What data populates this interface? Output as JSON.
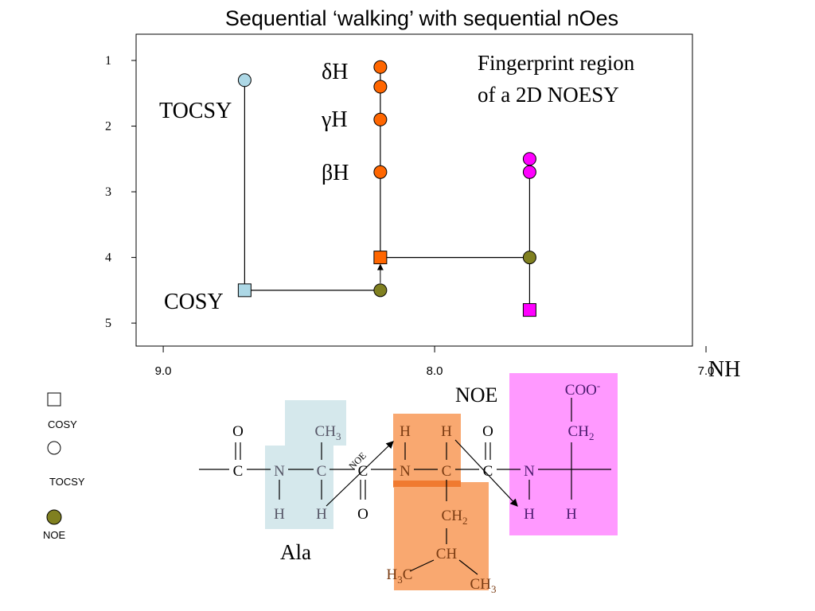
{
  "title": "Sequential ‘walking’ with sequential nOes",
  "annotations": {
    "fingerprint_line1": "Fingerprint region",
    "fingerprint_line2": "of a 2D NOESY",
    "tocsy": "TOCSY",
    "cosy": "COSY",
    "delta_h": "δH",
    "gamma_h": "γH",
    "beta_h": "βH",
    "nh_axis": "NH",
    "noe": "NOE",
    "noe_small": "NOE",
    "ala": "Ala"
  },
  "chart_data": {
    "type": "scatter",
    "xlabel": "NH",
    "x_ticks": [
      "9.0",
      "8.0",
      "7.0"
    ],
    "y_ticks": [
      "1",
      "2",
      "3",
      "4",
      "5"
    ],
    "xlim": [
      9.1,
      7.05
    ],
    "ylim": [
      0.6,
      5.35
    ],
    "points": [
      {
        "x": 8.7,
        "y": 1.3,
        "type": "TOCSY",
        "color": "#add8e6"
      },
      {
        "x": 8.7,
        "y": 4.5,
        "type": "COSY",
        "color": "#add8e6"
      },
      {
        "x": 8.2,
        "y": 4.5,
        "type": "NOE",
        "color": "#808020"
      },
      {
        "x": 8.2,
        "y": 4.0,
        "type": "COSY",
        "color": "#ff6600"
      },
      {
        "x": 8.2,
        "y": 2.7,
        "type": "TOCSY",
        "color": "#ff6600"
      },
      {
        "x": 8.2,
        "y": 1.9,
        "type": "TOCSY",
        "color": "#ff6600"
      },
      {
        "x": 8.2,
        "y": 1.4,
        "type": "TOCSY",
        "color": "#ff6600"
      },
      {
        "x": 8.2,
        "y": 1.1,
        "type": "TOCSY",
        "color": "#ff6600"
      },
      {
        "x": 7.65,
        "y": 4.0,
        "type": "NOE",
        "color": "#808020"
      },
      {
        "x": 7.65,
        "y": 4.8,
        "type": "COSY",
        "color": "#ff00ff"
      },
      {
        "x": 7.65,
        "y": 2.7,
        "type": "TOCSY",
        "color": "#ff00ff"
      },
      {
        "x": 7.65,
        "y": 2.5,
        "type": "TOCSY",
        "color": "#ff00ff"
      }
    ]
  },
  "legend": {
    "cosy": "COSY",
    "tocsy": "TOCSY",
    "noe": "NOE"
  },
  "structure": {
    "o1": "O",
    "c1": "C",
    "n1": "N",
    "h1": "H",
    "c2": "C",
    "h2": "H",
    "ch3": "CH",
    "c3": "C",
    "o3": "O",
    "noe_arrow": "NOE",
    "h3": "H",
    "n2": "N",
    "h4": "H",
    "c4": "C",
    "ch2a": "CH",
    "ch": "CH",
    "h3c": "H",
    "ch3b": "CH",
    "o5": "O",
    "c5": "C",
    "n3": "N",
    "h5": "H",
    "h6": "H",
    "ch2b": "CH",
    "coo": "COO",
    "sub2": "2",
    "sub3": "3",
    "minus": "-"
  },
  "colors": {
    "ala_box": "#d5e8ec",
    "leu_box": "#f9a870",
    "third_box": "#ff99ff",
    "line_dark": "#000000",
    "text_gray": "#555566",
    "text_brown": "#7a3b12",
    "text_purple": "#4b1a6e"
  }
}
